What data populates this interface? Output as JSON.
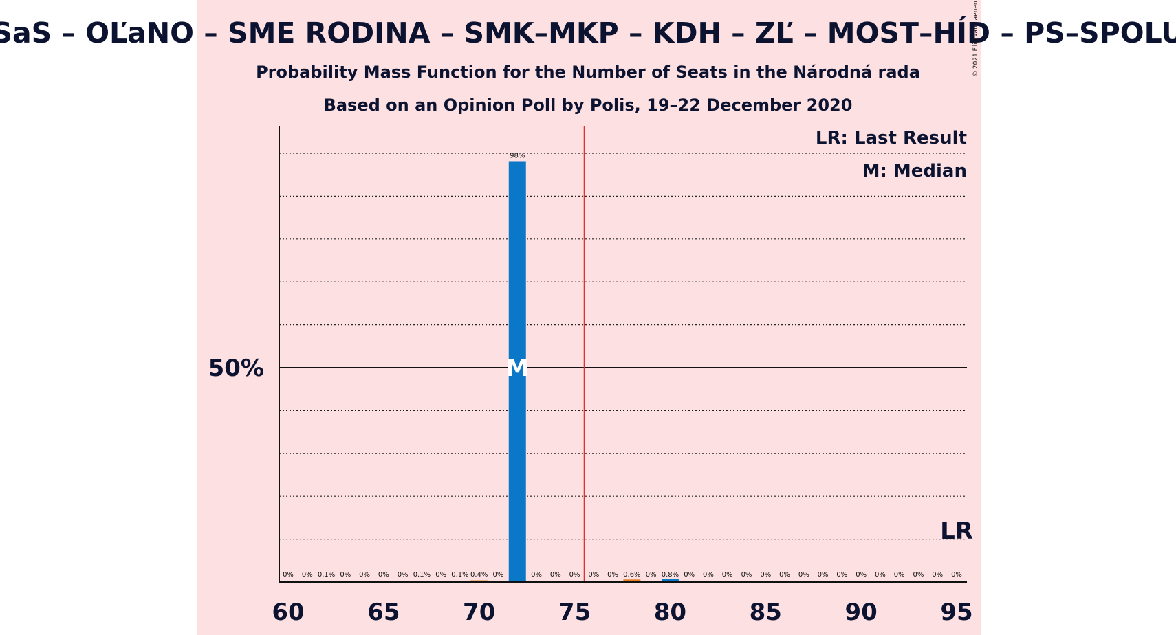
{
  "chart_data": {
    "type": "bar",
    "title": "SaS – OĽaNO – SME RODINA – SMK–MKP – KDH – ZĽ – MOST–HÍD – PS–SPOLU",
    "subtitle_line1": "Probability Mass Function for the Number of Seats in the Národná rada",
    "subtitle_line2": "Based on an Opinion Poll by Polis, 19–22 December 2020",
    "copyright": "© 2021 Filip van Laenen",
    "legend": {
      "lr": "LR: Last Result",
      "median": "M: Median",
      "placement": "top-right"
    },
    "y_tick_label": "50%",
    "median_marker": "M",
    "lr_marker": "LR",
    "x_ticks": [
      "60",
      "65",
      "70",
      "75",
      "80",
      "85",
      "90",
      "95"
    ],
    "xlim": [
      60,
      95
    ],
    "ylim": [
      0,
      1
    ],
    "majority_line": 75.5,
    "median_seat": 72,
    "last_result_seat": 95,
    "bar_color": "#0a77c7",
    "orange_color": "#e67e22",
    "majority_color": "#e03030",
    "categories": [
      60,
      61,
      62,
      63,
      64,
      65,
      66,
      67,
      68,
      69,
      70,
      71,
      72,
      73,
      74,
      75,
      76,
      77,
      78,
      79,
      80,
      81,
      82,
      83,
      84,
      85,
      86,
      87,
      88,
      89,
      90,
      91,
      92,
      93,
      94,
      95
    ],
    "values": [
      0,
      0,
      0.001,
      0,
      0,
      0,
      0,
      0.001,
      0,
      0.001,
      0.004,
      0,
      0.98,
      0,
      0,
      0,
      0,
      0,
      0.006,
      0,
      0.008,
      0,
      0,
      0,
      0,
      0,
      0,
      0,
      0,
      0,
      0,
      0,
      0,
      0,
      0,
      0
    ],
    "value_labels": [
      "0%",
      "0%",
      "0.1%",
      "0%",
      "0%",
      "0%",
      "0%",
      "0.1%",
      "0%",
      "0.1%",
      "0.4%",
      "0%",
      "98%",
      "0%",
      "0%",
      "0%",
      "0%",
      "0%",
      "0.6%",
      "0%",
      "0.8%",
      "0%",
      "0%",
      "0%",
      "0%",
      "0%",
      "0%",
      "0%",
      "0%",
      "0%",
      "0%",
      "0%",
      "0%",
      "0%",
      "0%",
      "0%"
    ]
  }
}
